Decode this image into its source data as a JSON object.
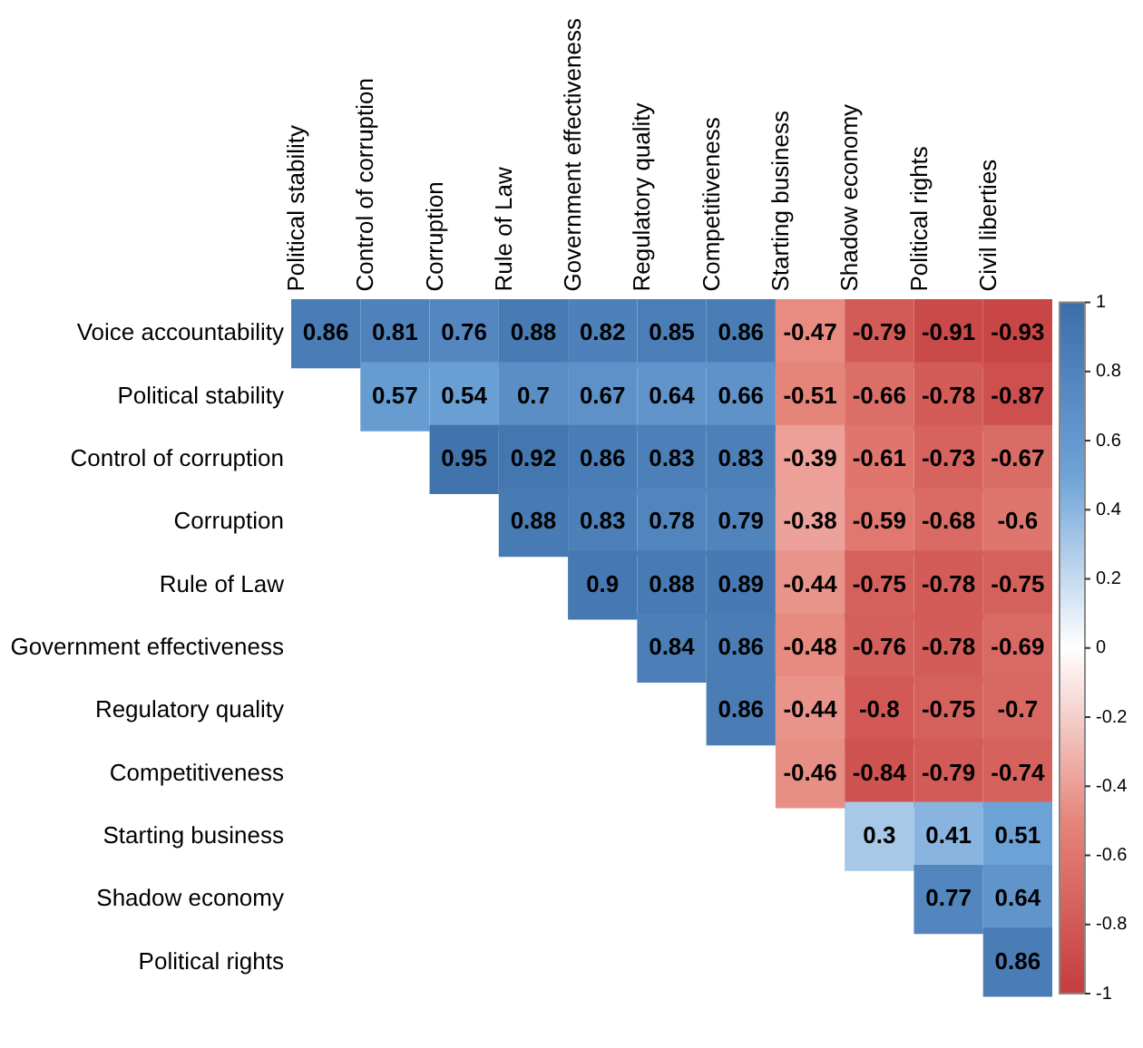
{
  "chart_data": {
    "type": "heatmap",
    "categories": [
      "Political stability",
      "Control of corruption",
      "Corruption",
      "Rule of Law",
      "Government effectiveness",
      "Regulatory quality",
      "Competitiveness",
      "Starting business",
      "Shadow economy",
      "Political rights",
      "Civil liberties"
    ],
    "y_categories": [
      "Voice accountability",
      "Political stability",
      "Control of corruption",
      "Corruption",
      "Rule of Law",
      "Government effectiveness",
      "Regulatory quality",
      "Competitiveness",
      "Starting business",
      "Shadow economy",
      "Political rights"
    ],
    "cells": [
      [
        0.86,
        0.81,
        0.76,
        0.88,
        0.82,
        0.85,
        0.86,
        -0.47,
        -0.79,
        -0.91,
        -0.93
      ],
      [
        null,
        0.57,
        0.54,
        0.7,
        0.67,
        0.64,
        0.66,
        -0.51,
        -0.66,
        -0.78,
        -0.87
      ],
      [
        null,
        null,
        0.95,
        0.92,
        0.86,
        0.83,
        0.83,
        -0.39,
        -0.61,
        -0.73,
        -0.67
      ],
      [
        null,
        null,
        null,
        0.88,
        0.83,
        0.78,
        0.79,
        -0.38,
        -0.59,
        -0.68,
        -0.6
      ],
      [
        null,
        null,
        null,
        null,
        0.9,
        0.88,
        0.89,
        -0.44,
        -0.75,
        -0.78,
        -0.75
      ],
      [
        null,
        null,
        null,
        null,
        null,
        0.84,
        0.86,
        -0.48,
        -0.76,
        -0.78,
        -0.69
      ],
      [
        null,
        null,
        null,
        null,
        null,
        null,
        0.86,
        -0.44,
        -0.8,
        -0.75,
        -0.7
      ],
      [
        null,
        null,
        null,
        null,
        null,
        null,
        null,
        -0.46,
        -0.84,
        -0.79,
        -0.74
      ],
      [
        null,
        null,
        null,
        null,
        null,
        null,
        null,
        null,
        0.3,
        0.41,
        0.51
      ],
      [
        null,
        null,
        null,
        null,
        null,
        null,
        null,
        null,
        null,
        0.77,
        0.64
      ],
      [
        null,
        null,
        null,
        null,
        null,
        null,
        null,
        null,
        null,
        null,
        0.86
      ]
    ],
    "clim": [
      -1,
      1
    ],
    "cticks": [
      -1,
      -0.8,
      -0.6,
      -0.4,
      -0.2,
      0,
      0.2,
      0.4,
      0.6,
      0.8,
      1
    ],
    "data_labels": true
  }
}
